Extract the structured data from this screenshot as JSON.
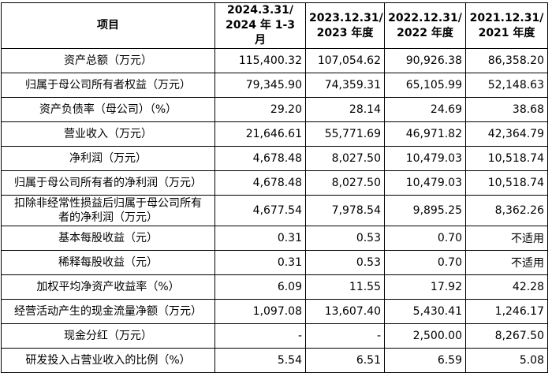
{
  "table": {
    "header": [
      [
        "项目"
      ],
      [
        "2024.3.31/",
        "2024 年 1-3 月"
      ],
      [
        "2023.12.31/",
        "2023 年度"
      ],
      [
        "2022.12.31/",
        "2022 年度"
      ],
      [
        "2021.12.31/",
        "2021 年度"
      ]
    ],
    "rows": [
      [
        "资产总额（万元）",
        "115,400.32",
        "107,054.62",
        "90,926.38",
        "86,358.20"
      ],
      [
        "归属于母公司所有者权益（万元）",
        "79,345.90",
        "74,359.31",
        "65,105.99",
        "52,148.63"
      ],
      [
        "资产负债率（母公司）（%）",
        "29.20",
        "28.14",
        "24.69",
        "38.68"
      ],
      [
        "营业收入（万元）",
        "21,646.61",
        "55,771.69",
        "46,971.82",
        "42,364.79"
      ],
      [
        "净利润（万元）",
        "4,678.48",
        "8,027.50",
        "10,479.03",
        "10,518.74"
      ],
      [
        "归属于母公司所有者的净利润（万元）",
        "4,678.48",
        "8,027.50",
        "10,479.03",
        "10,518.74"
      ],
      [
        "扣除非经常性损益后归属于母公司所有者的净利润（万元）",
        "4,677.54",
        "7,978.54",
        "9,895.25",
        "8,362.26"
      ],
      [
        "基本每股收益（元）",
        "0.31",
        "0.53",
        "0.70",
        "不适用"
      ],
      [
        "稀释每股收益（元）",
        "0.31",
        "0.53",
        "0.70",
        "不适用"
      ],
      [
        "加权平均净资产收益率（%）",
        "6.09",
        "11.55",
        "17.92",
        "42.28"
      ],
      [
        "经营活动产生的现金流量净额（万元）",
        "1,097.08",
        "13,607.40",
        "5,430.41",
        "1,246.17"
      ],
      [
        "现金分红（万元）",
        "-",
        "-",
        "2,500.00",
        "8,267.50"
      ],
      [
        "研发投入占营业收入的比例（%）",
        "5.54",
        "6.51",
        "6.59",
        "5.08"
      ]
    ]
  }
}
